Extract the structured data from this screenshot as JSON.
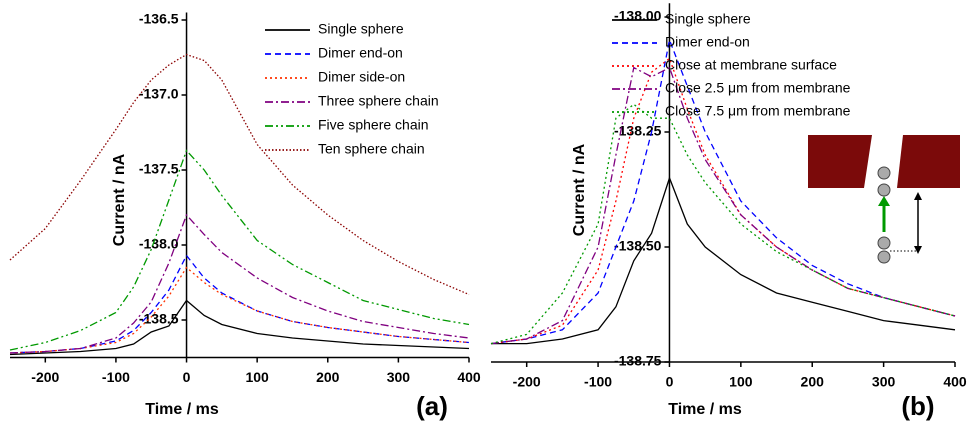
{
  "chart_data": [
    {
      "type": "line",
      "panel_label": "(a)",
      "x_label": "Time / ms",
      "y_label": "Current / nA",
      "xlim": [
        -250,
        400
      ],
      "ylim": [
        -138.75,
        -136.45
      ],
      "xticks": [
        -200,
        -100,
        0,
        100,
        200,
        300,
        400
      ],
      "yticks": [
        -136.5,
        {
          "value": -137,
          "label": "-137.0"
        },
        -137.5,
        {
          "value": -138,
          "label": "-138.0"
        },
        -138.5
      ],
      "x": [
        -250,
        -200,
        -150,
        -100,
        -75,
        -50,
        -25,
        0,
        25,
        50,
        100,
        150,
        200,
        250,
        300,
        350,
        400
      ],
      "series": [
        {
          "name": "Single sphere",
          "color": "#000000",
          "dash": "solid",
          "values": [
            -138.73,
            -138.72,
            -138.71,
            -138.69,
            -138.66,
            -138.58,
            -138.54,
            -138.37,
            -138.47,
            -138.53,
            -138.59,
            -138.62,
            -138.64,
            -138.66,
            -138.67,
            -138.68,
            -138.69
          ]
        },
        {
          "name": "Dimer end-on",
          "color": "#0000ff",
          "dash": "dashed",
          "values": [
            -138.72,
            -138.71,
            -138.69,
            -138.64,
            -138.57,
            -138.45,
            -138.3,
            -138.07,
            -138.22,
            -138.32,
            -138.44,
            -138.51,
            -138.55,
            -138.58,
            -138.61,
            -138.63,
            -138.65
          ]
        },
        {
          "name": "Dimer side-on",
          "color": "#ff3300",
          "dash": "dotted",
          "values": [
            -138.72,
            -138.71,
            -138.69,
            -138.65,
            -138.59,
            -138.48,
            -138.34,
            -138.15,
            -138.25,
            -138.33,
            -138.44,
            -138.51,
            -138.55,
            -138.58,
            -138.61,
            -138.63,
            -138.65
          ]
        },
        {
          "name": "Three sphere chain",
          "color": "#800080",
          "dash": "dashdot",
          "values": [
            -138.72,
            -138.71,
            -138.69,
            -138.62,
            -138.52,
            -138.38,
            -138.12,
            -137.8,
            -137.93,
            -138.05,
            -138.22,
            -138.35,
            -138.44,
            -138.51,
            -138.55,
            -138.59,
            -138.62
          ]
        },
        {
          "name": "Five sphere chain",
          "color": "#009900",
          "dash": "dashdotdot",
          "values": [
            -138.7,
            -138.65,
            -138.57,
            -138.45,
            -138.28,
            -138.03,
            -137.7,
            -137.37,
            -137.5,
            -137.67,
            -137.97,
            -138.13,
            -138.25,
            -138.37,
            -138.43,
            -138.49,
            -138.53
          ]
        },
        {
          "name": "Ten sphere chain",
          "color": "#8b0000",
          "dash": "shortdot",
          "values": [
            -138.1,
            -137.89,
            -137.57,
            -137.23,
            -137.05,
            -136.9,
            -136.8,
            -136.73,
            -136.77,
            -136.9,
            -137.33,
            -137.6,
            -137.8,
            -137.97,
            -138.11,
            -138.23,
            -138.33
          ]
        }
      ]
    },
    {
      "type": "line",
      "panel_label": "(b)",
      "x_label": "Time / ms",
      "y_label": "Current / nA",
      "xlim": [
        -250,
        400
      ],
      "ylim": [
        -138.75,
        -137.97
      ],
      "xticks": [
        -200,
        -100,
        0,
        100,
        200,
        300,
        400
      ],
      "yticks": [
        {
          "value": -138,
          "label": "-138.00"
        },
        -138.25,
        {
          "value": -138.5,
          "label": "-138.50"
        },
        -138.75
      ],
      "x": [
        -250,
        -200,
        -150,
        -100,
        -75,
        -50,
        -25,
        0,
        25,
        50,
        100,
        150,
        200,
        250,
        300,
        350,
        400
      ],
      "series": [
        {
          "name": "Single sphere",
          "color": "#000000",
          "dash": "solid",
          "values": [
            -138.71,
            -138.71,
            -138.7,
            -138.68,
            -138.63,
            -138.53,
            -138.47,
            -138.35,
            -138.45,
            -138.5,
            -138.56,
            -138.6,
            -138.62,
            -138.64,
            -138.66,
            -138.67,
            -138.68
          ]
        },
        {
          "name": "Dimer end-on",
          "color": "#0000ff",
          "dash": "dashed",
          "values": [
            -138.71,
            -138.7,
            -138.68,
            -138.6,
            -138.5,
            -138.4,
            -138.25,
            -138.05,
            -138.15,
            -138.25,
            -138.4,
            -138.48,
            -138.54,
            -138.58,
            -138.61,
            -138.63,
            -138.65
          ]
        },
        {
          "name": "Close at membrane surface",
          "color": "#ff0000",
          "dash": "dotted",
          "values": [
            -138.71,
            -138.7,
            -138.67,
            -138.55,
            -138.4,
            -138.22,
            -138.12,
            -138.09,
            -138.2,
            -138.3,
            -138.43,
            -138.5,
            -138.55,
            -138.59,
            -138.61,
            -138.63,
            -138.65
          ]
        },
        {
          "name": "Close 2.5 μm from membrane",
          "color": "#800080",
          "dash": "dashdot",
          "values": [
            -138.71,
            -138.7,
            -138.66,
            -138.5,
            -138.3,
            -138.11,
            -138.13,
            -138.11,
            -138.22,
            -138.31,
            -138.43,
            -138.5,
            -138.55,
            -138.59,
            -138.61,
            -138.63,
            -138.65
          ]
        },
        {
          "name": "Close 7.5 μm from membrane",
          "color": "#009900",
          "dash": "dotted",
          "values": [
            -138.71,
            -138.69,
            -138.6,
            -138.45,
            -138.22,
            -138.19,
            -138.22,
            -138.22,
            -138.3,
            -138.36,
            -138.45,
            -138.51,
            -138.55,
            -138.59,
            -138.61,
            -138.63,
            -138.65
          ]
        }
      ]
    }
  ]
}
